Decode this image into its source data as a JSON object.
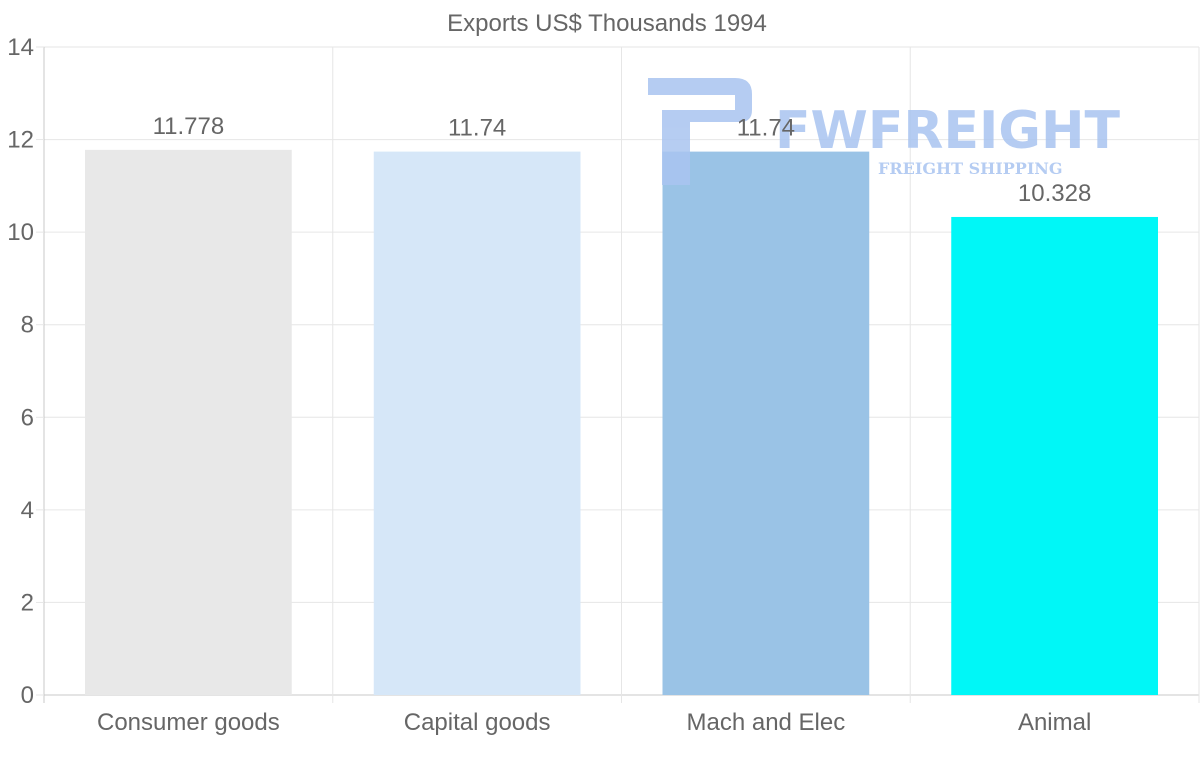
{
  "chart_data": {
    "type": "bar",
    "title": "Exports US$ Thousands 1994",
    "categories": [
      "Consumer goods",
      "Capital goods",
      "Mach and Elec",
      "Animal"
    ],
    "values": [
      11.778,
      11.74,
      11.74,
      10.328
    ],
    "value_labels": [
      "11.778",
      "11.74",
      "11.74",
      "10.328"
    ],
    "bar_colors": [
      "#e8e8e8",
      "#d6e7f8",
      "#9ac3e6",
      "#00f7f7"
    ],
    "ylim": [
      0,
      14
    ],
    "yticks": [
      0,
      2,
      4,
      6,
      8,
      10,
      12,
      14
    ],
    "xlabel": "",
    "ylabel": "",
    "grid": true,
    "legend": "none"
  },
  "watermark": {
    "brand": "FWFREIGHT",
    "tagline": "FREIGHT SHIPPING",
    "color": "#a9c4f0"
  }
}
